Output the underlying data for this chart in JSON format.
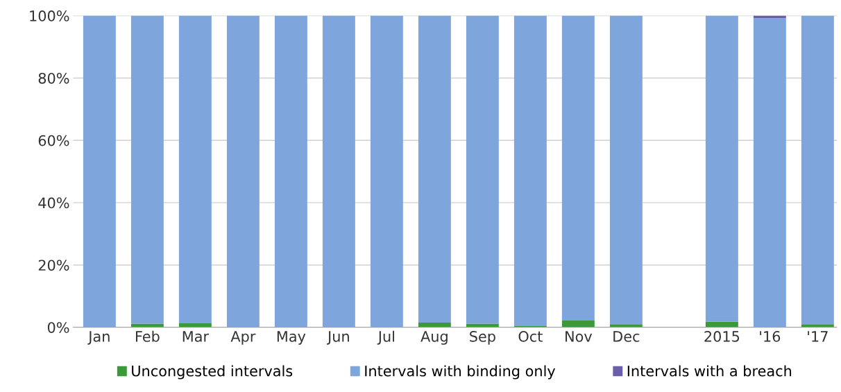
{
  "chart_data": {
    "type": "bar",
    "stacked": true,
    "categories": [
      "Jan",
      "Feb",
      "Mar",
      "Apr",
      "May",
      "Jun",
      "Jul",
      "Aug",
      "Sep",
      "Oct",
      "Nov",
      "Dec",
      null,
      "2015",
      "'16",
      "'17"
    ],
    "series": [
      {
        "name": "Uncongested intervals",
        "color": "#3a9a3a",
        "values": [
          0,
          1.2,
          1.3,
          0,
          0,
          0,
          0,
          1.5,
          1.2,
          0.4,
          2.2,
          1.0,
          null,
          1.8,
          0,
          1.0
        ]
      },
      {
        "name": "Intervals with binding only",
        "color": "#7ea6dc",
        "values": [
          100,
          98.8,
          98.7,
          100,
          100,
          100,
          100,
          98.5,
          98.8,
          99.6,
          97.8,
          99.0,
          null,
          98.2,
          99.2,
          99.0
        ]
      },
      {
        "name": "Intervals with a breach",
        "color": "#6a5fa8",
        "values": [
          0,
          0,
          0,
          0,
          0,
          0,
          0,
          0,
          0,
          0,
          0,
          0,
          null,
          0,
          0.8,
          0
        ]
      }
    ],
    "ylim": [
      0,
      100
    ],
    "yticks": [
      {
        "value": 0,
        "label": "0%"
      },
      {
        "value": 20,
        "label": "20%"
      },
      {
        "value": 40,
        "label": "40%"
      },
      {
        "value": 60,
        "label": "60%"
      },
      {
        "value": 80,
        "label": "80%"
      },
      {
        "value": 100,
        "label": "100%"
      }
    ],
    "grid": "y",
    "legend": "bottom"
  }
}
